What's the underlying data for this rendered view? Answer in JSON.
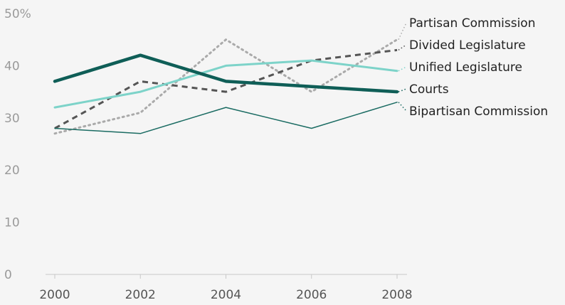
{
  "chart_data": {
    "type": "line",
    "title": "",
    "xlabel": "",
    "ylabel": "",
    "x": [
      2000,
      2002,
      2004,
      2006,
      2008
    ],
    "x_tick_labels": [
      "2000",
      "2002",
      "2004",
      "2006",
      "2008"
    ],
    "ylim": [
      0,
      50
    ],
    "y_tick_labels": [
      "0",
      "10",
      "20",
      "30",
      "40",
      "50%"
    ],
    "grid": false,
    "legend": "direct labels at right end of lines",
    "series": [
      {
        "name": "Partisan Commission",
        "values": [
          27,
          31,
          45,
          35,
          45
        ],
        "color": "#aaaaaa",
        "style": "dotted"
      },
      {
        "name": "Divided Legislature",
        "values": [
          28,
          37,
          35,
          41,
          43
        ],
        "color": "#555555",
        "style": "dashed"
      },
      {
        "name": "Unified Legislature",
        "values": [
          32,
          35,
          40,
          41,
          39
        ],
        "color": "#7dd3c9",
        "style": "solid"
      },
      {
        "name": "Courts",
        "values": [
          37,
          42,
          37,
          36,
          35
        ],
        "color": "#0f5e57",
        "style": "solid-thick"
      },
      {
        "name": "Bipartisan Commission",
        "values": [
          28,
          27,
          32,
          28,
          33
        ],
        "color": "#1a6b62",
        "style": "solid-thin"
      }
    ]
  }
}
